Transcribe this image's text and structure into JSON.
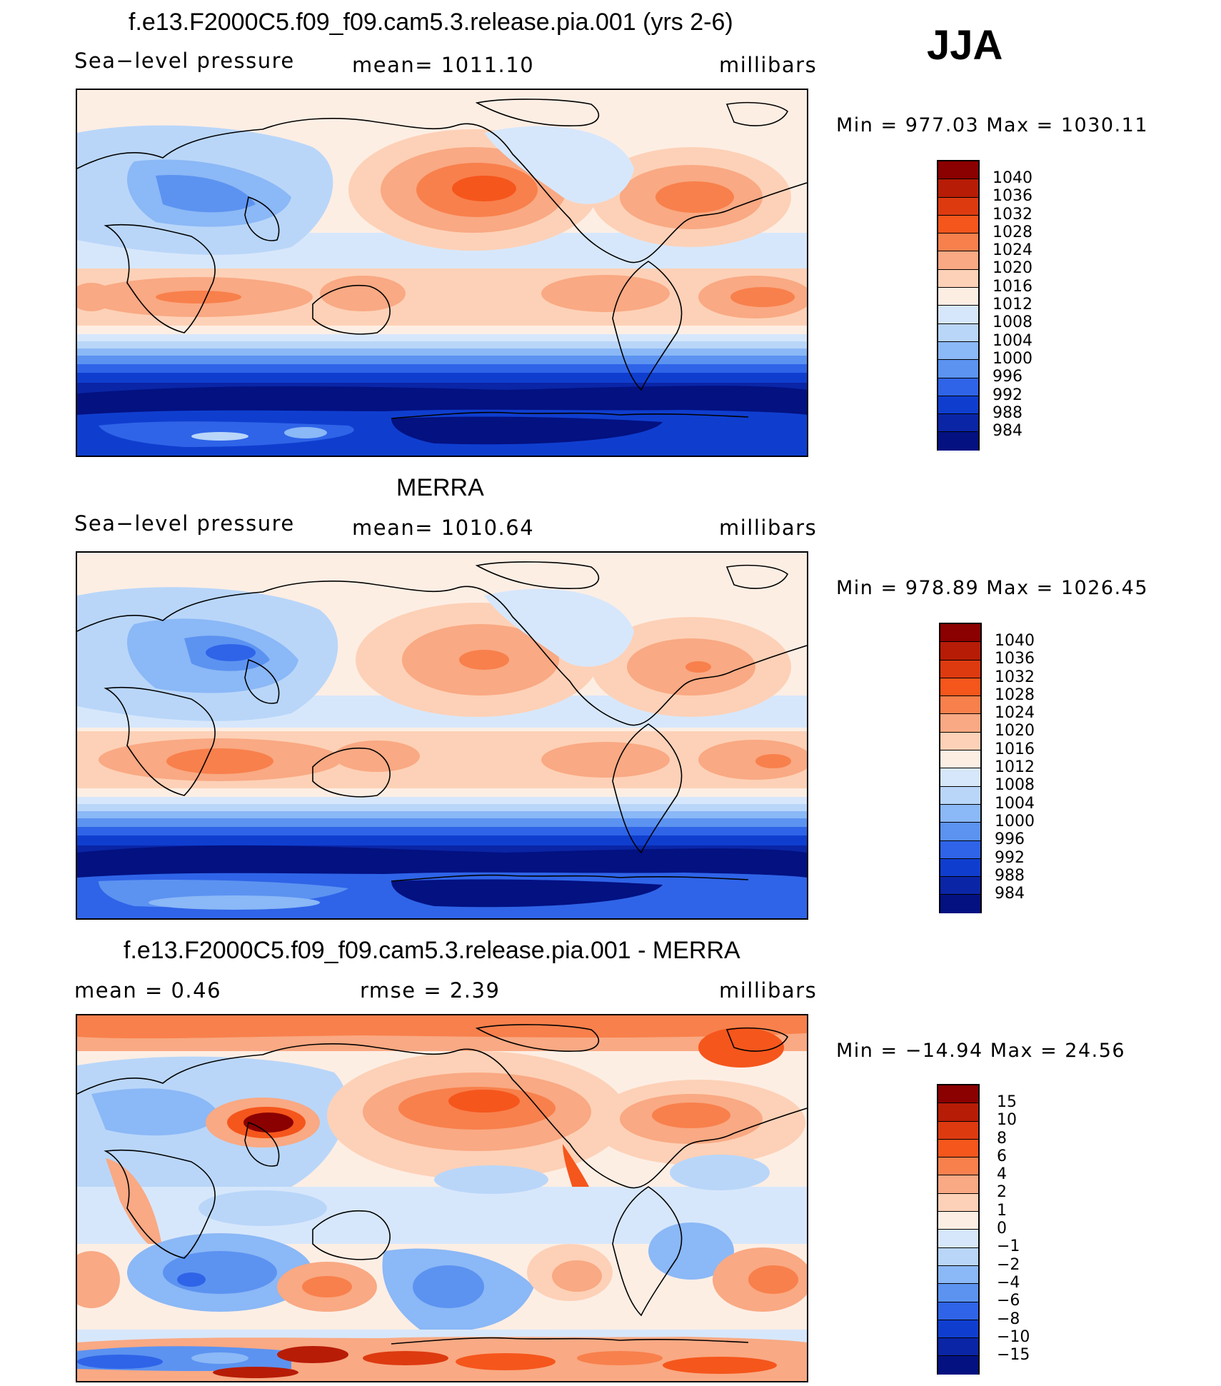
{
  "season": "JJA",
  "panels": [
    {
      "title": "f.e13.F2000C5.f09_f09.cam5.3.release.pia.001 (yrs 2-6)",
      "left": "Sea−level pressure",
      "center": "mean=  1011.10",
      "right": "millibars",
      "minmax": "Min  =  977.03  Max  =  1030.11",
      "colorbar_labels": [
        "1040",
        "1036",
        "1032",
        "1028",
        "1024",
        "1020",
        "1016",
        "1012",
        "1008",
        "1004",
        "1000",
        "996",
        "992",
        "988",
        "984"
      ]
    },
    {
      "title": "MERRA",
      "left": "Sea−level pressure",
      "center": "mean=  1010.64",
      "right": "millibars",
      "minmax": "Min  =  978.89  Max  =  1026.45",
      "colorbar_labels": [
        "1040",
        "1036",
        "1032",
        "1028",
        "1024",
        "1020",
        "1016",
        "1012",
        "1008",
        "1004",
        "1000",
        "996",
        "992",
        "988",
        "984"
      ]
    },
    {
      "title": "f.e13.F2000C5.f09_f09.cam5.3.release.pia.001 - MERRA",
      "left": "mean  =      0.46",
      "center": "rmse  =      2.39",
      "right": "millibars",
      "minmax": "Min  =  −14.94  Max  =     24.56",
      "colorbar_labels": [
        "15",
        "10",
        "8",
        "6",
        "4",
        "2",
        "1",
        "0",
        "−1",
        "−2",
        "−4",
        "−6",
        "−8",
        "−10",
        "−15"
      ]
    }
  ],
  "colors": {
    "abs_scale": [
      "#8b0000",
      "#b71c06",
      "#dd3a10",
      "#f5561c",
      "#f8804c",
      "#f9a983",
      "#fdd1b7",
      "#fdeee4",
      "#d7e7fb",
      "#b9d6f9",
      "#8bb8f6",
      "#5c93f1",
      "#2f64e8",
      "#0f3ecf",
      "#0a25a6",
      "#031181"
    ],
    "diff_scale": [
      "#8b0000",
      "#b71c06",
      "#dd3a10",
      "#f5561c",
      "#f8804c",
      "#f9a983",
      "#fdd1b7",
      "#fdeee4",
      "#d7e7fb",
      "#b9d6f9",
      "#8bb8f6",
      "#5c93f1",
      "#2f64e8",
      "#0f3ecf",
      "#0a25a6",
      "#031181"
    ]
  }
}
